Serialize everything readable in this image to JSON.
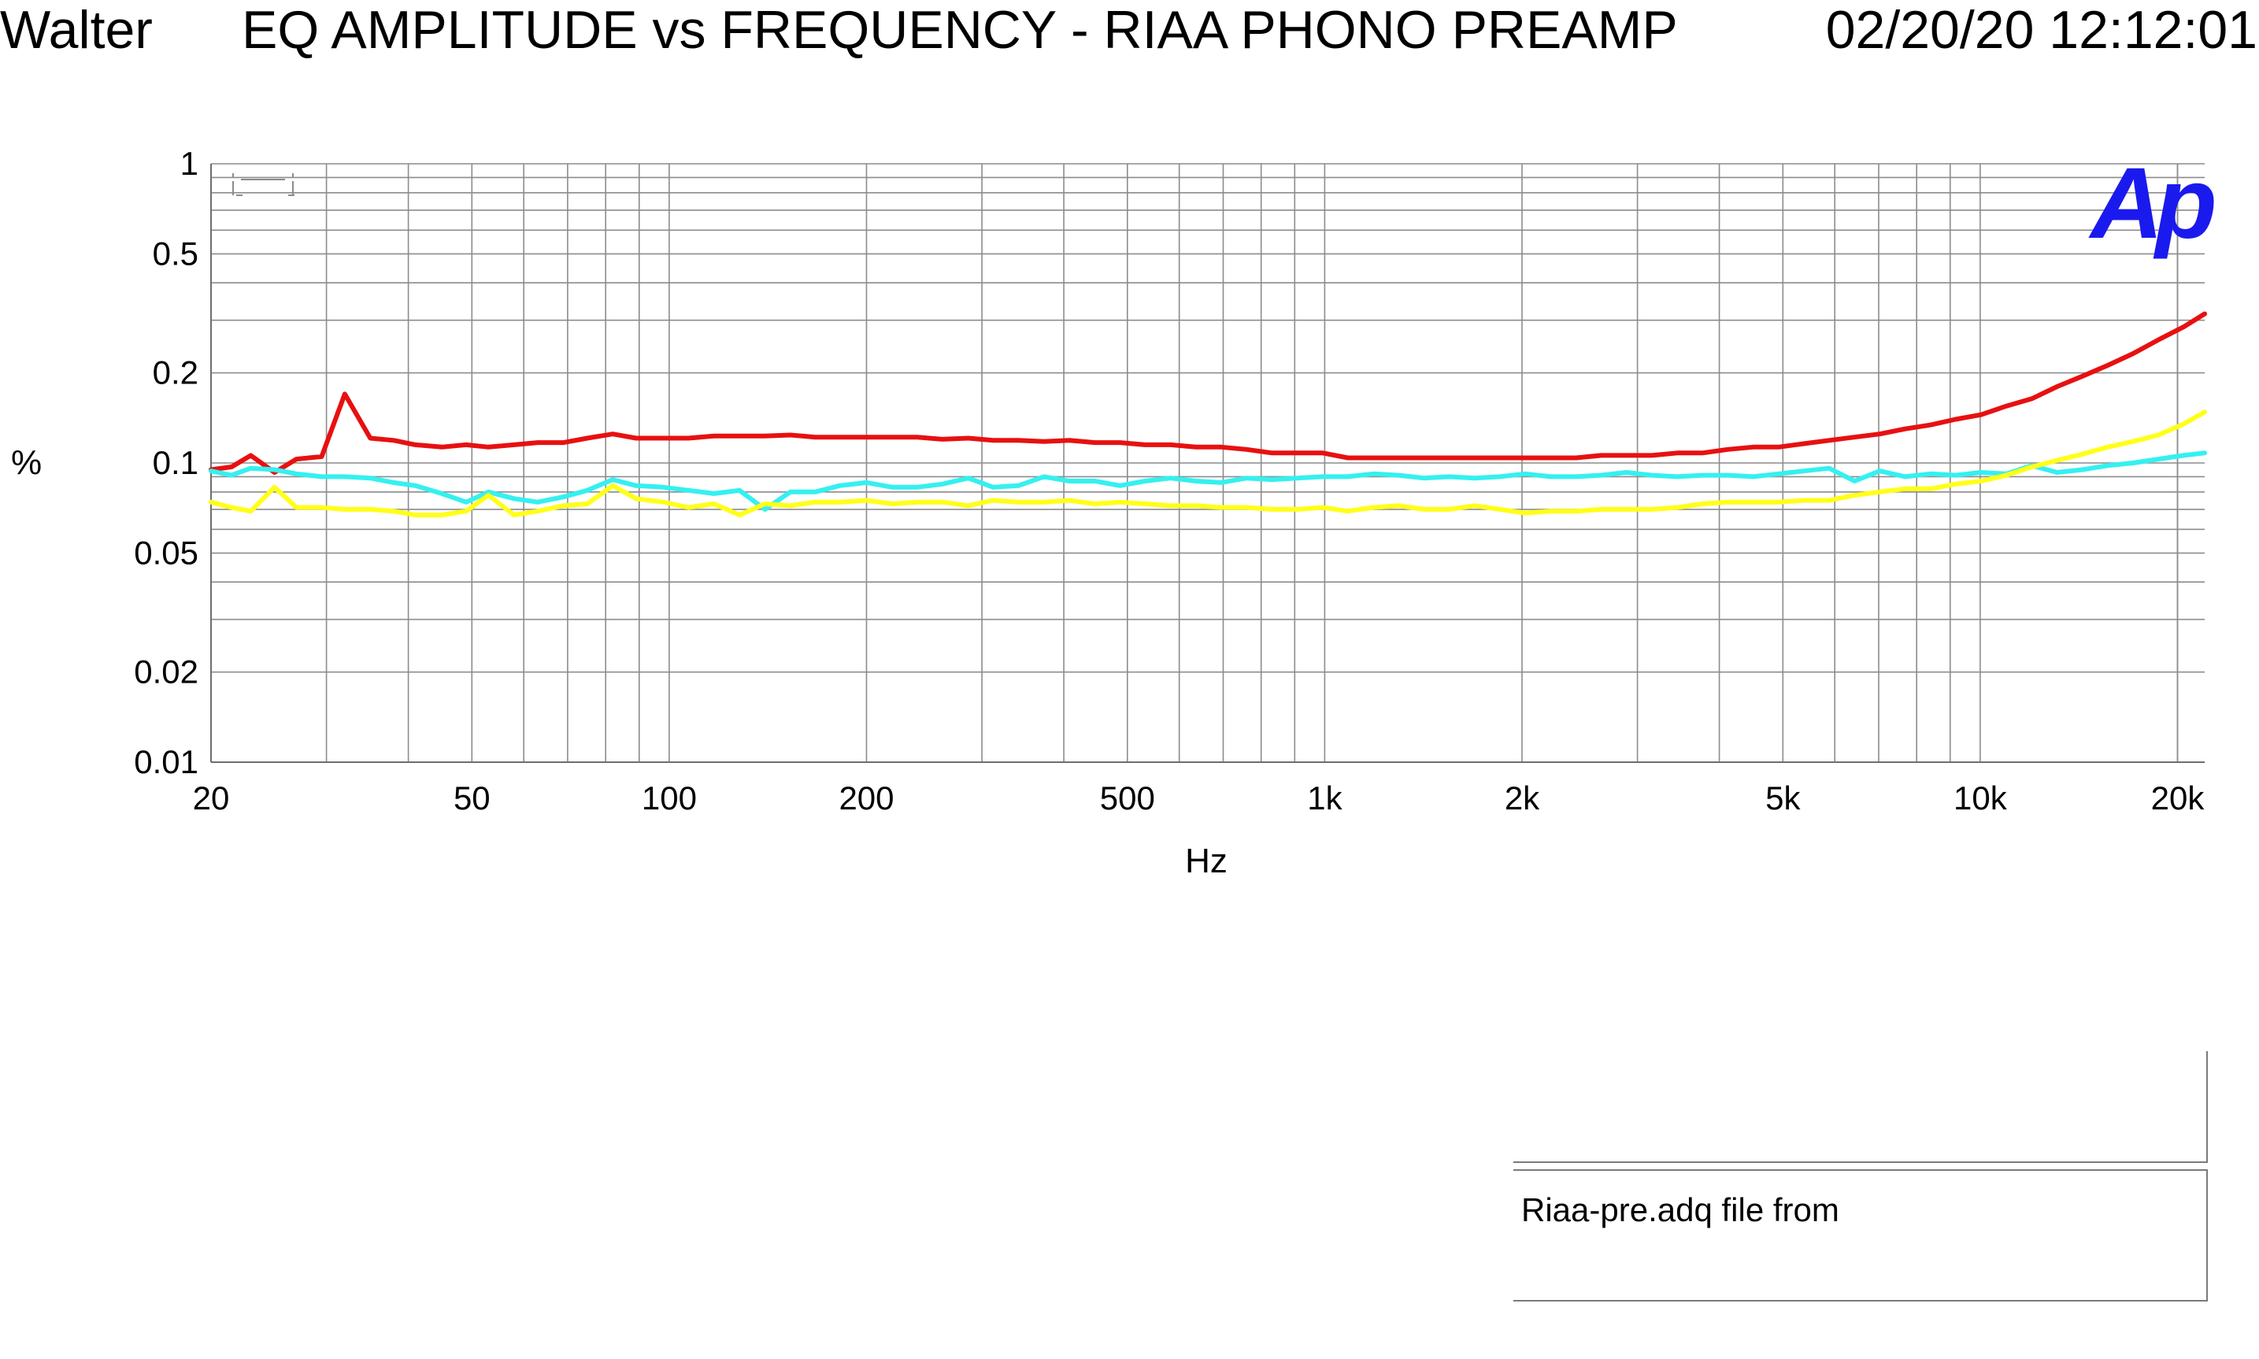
{
  "header": {
    "author": "Walter",
    "title": "EQ AMPLITUDE vs FREQUENCY - RIAA PHONO PREAMP",
    "timestamp": "02/20/20 12:12:01"
  },
  "logo_text": "Ap",
  "note": {
    "top": "",
    "text": "Riaa-pre.adq file from"
  },
  "chart_data": {
    "type": "line",
    "title": "EQ AMPLITUDE vs FREQUENCY - RIAA PHONO PREAMP",
    "xlabel": "Hz",
    "ylabel": "%",
    "x_scale": "log",
    "y_scale": "log",
    "xlim": [
      20,
      22000
    ],
    "ylim": [
      0.01,
      1
    ],
    "grid": true,
    "x_ticks": [
      {
        "v": 20,
        "label": "20"
      },
      {
        "v": 50,
        "label": "50"
      },
      {
        "v": 100,
        "label": "100"
      },
      {
        "v": 200,
        "label": "200"
      },
      {
        "v": 500,
        "label": "500"
      },
      {
        "v": 1000,
        "label": "1k"
      },
      {
        "v": 2000,
        "label": "2k"
      },
      {
        "v": 5000,
        "label": "5k"
      },
      {
        "v": 10000,
        "label": "10k"
      },
      {
        "v": 20000,
        "label": "20k"
      }
    ],
    "y_ticks": [
      {
        "v": 1,
        "label": "1"
      },
      {
        "v": 0.5,
        "label": "0.5"
      },
      {
        "v": 0.2,
        "label": "0.2"
      },
      {
        "v": 0.1,
        "label": "0.1"
      },
      {
        "v": 0.05,
        "label": "0.05"
      },
      {
        "v": 0.02,
        "label": "0.02"
      },
      {
        "v": 0.01,
        "label": "0.01"
      }
    ],
    "series": [
      {
        "color": "#e81010",
        "points": [
          [
            20,
            0.095
          ],
          [
            21.5,
            0.097
          ],
          [
            23,
            0.106
          ],
          [
            25,
            0.093
          ],
          [
            27,
            0.103
          ],
          [
            29.5,
            0.105
          ],
          [
            32,
            0.17
          ],
          [
            35,
            0.121
          ],
          [
            38,
            0.119
          ],
          [
            41,
            0.115
          ],
          [
            45,
            0.113
          ],
          [
            49,
            0.115
          ],
          [
            53,
            0.113
          ],
          [
            58,
            0.115
          ],
          [
            63,
            0.117
          ],
          [
            69,
            0.117
          ],
          [
            75,
            0.121
          ],
          [
            82,
            0.125
          ],
          [
            89,
            0.121
          ],
          [
            98,
            0.121
          ],
          [
            107,
            0.121
          ],
          [
            117,
            0.123
          ],
          [
            128,
            0.123
          ],
          [
            140,
            0.123
          ],
          [
            153,
            0.124
          ],
          [
            167,
            0.122
          ],
          [
            182,
            0.122
          ],
          [
            200,
            0.122
          ],
          [
            219,
            0.122
          ],
          [
            239,
            0.122
          ],
          [
            261,
            0.12
          ],
          [
            286,
            0.121
          ],
          [
            312,
            0.119
          ],
          [
            341,
            0.119
          ],
          [
            373,
            0.118
          ],
          [
            408,
            0.119
          ],
          [
            446,
            0.117
          ],
          [
            487,
            0.117
          ],
          [
            532,
            0.115
          ],
          [
            582,
            0.115
          ],
          [
            636,
            0.113
          ],
          [
            695,
            0.113
          ],
          [
            760,
            0.111
          ],
          [
            831,
            0.108
          ],
          [
            908,
            0.108
          ],
          [
            993,
            0.108
          ],
          [
            1085,
            0.104
          ],
          [
            1186,
            0.104
          ],
          [
            1296,
            0.104
          ],
          [
            1417,
            0.104
          ],
          [
            1549,
            0.104
          ],
          [
            1693,
            0.104
          ],
          [
            1850,
            0.104
          ],
          [
            2022,
            0.104
          ],
          [
            2211,
            0.104
          ],
          [
            2417,
            0.104
          ],
          [
            2641,
            0.106
          ],
          [
            2887,
            0.106
          ],
          [
            3156,
            0.106
          ],
          [
            3450,
            0.108
          ],
          [
            3770,
            0.108
          ],
          [
            4121,
            0.111
          ],
          [
            4505,
            0.113
          ],
          [
            4924,
            0.113
          ],
          [
            5382,
            0.116
          ],
          [
            5883,
            0.119
          ],
          [
            6430,
            0.122
          ],
          [
            7028,
            0.125
          ],
          [
            7682,
            0.13
          ],
          [
            8397,
            0.134
          ],
          [
            9178,
            0.14
          ],
          [
            10032,
            0.145
          ],
          [
            10965,
            0.155
          ],
          [
            11985,
            0.164
          ],
          [
            13100,
            0.18
          ],
          [
            14318,
            0.195
          ],
          [
            15650,
            0.212
          ],
          [
            17106,
            0.232
          ],
          [
            18697,
            0.258
          ],
          [
            20436,
            0.285
          ],
          [
            22000,
            0.315
          ]
        ]
      },
      {
        "color": "#35f0f0",
        "points": [
          [
            20,
            0.094
          ],
          [
            21.5,
            0.091
          ],
          [
            23,
            0.096
          ],
          [
            25,
            0.095
          ],
          [
            27,
            0.092
          ],
          [
            29.5,
            0.09
          ],
          [
            32,
            0.09
          ],
          [
            35,
            0.089
          ],
          [
            38,
            0.086
          ],
          [
            41,
            0.084
          ],
          [
            45,
            0.079
          ],
          [
            49,
            0.074
          ],
          [
            53,
            0.08
          ],
          [
            58,
            0.076
          ],
          [
            63,
            0.074
          ],
          [
            69,
            0.077
          ],
          [
            75,
            0.081
          ],
          [
            82,
            0.088
          ],
          [
            89,
            0.084
          ],
          [
            98,
            0.083
          ],
          [
            107,
            0.081
          ],
          [
            117,
            0.079
          ],
          [
            128,
            0.081
          ],
          [
            140,
            0.07
          ],
          [
            153,
            0.08
          ],
          [
            167,
            0.08
          ],
          [
            182,
            0.084
          ],
          [
            200,
            0.086
          ],
          [
            219,
            0.083
          ],
          [
            239,
            0.083
          ],
          [
            261,
            0.085
          ],
          [
            286,
            0.089
          ],
          [
            312,
            0.083
          ],
          [
            341,
            0.084
          ],
          [
            373,
            0.09
          ],
          [
            408,
            0.087
          ],
          [
            446,
            0.087
          ],
          [
            487,
            0.084
          ],
          [
            532,
            0.087
          ],
          [
            582,
            0.089
          ],
          [
            636,
            0.087
          ],
          [
            695,
            0.086
          ],
          [
            760,
            0.089
          ],
          [
            831,
            0.088
          ],
          [
            908,
            0.089
          ],
          [
            993,
            0.09
          ],
          [
            1085,
            0.09
          ],
          [
            1186,
            0.092
          ],
          [
            1296,
            0.091
          ],
          [
            1417,
            0.089
          ],
          [
            1549,
            0.09
          ],
          [
            1693,
            0.089
          ],
          [
            1850,
            0.09
          ],
          [
            2022,
            0.092
          ],
          [
            2211,
            0.09
          ],
          [
            2417,
            0.09
          ],
          [
            2641,
            0.091
          ],
          [
            2887,
            0.093
          ],
          [
            3156,
            0.091
          ],
          [
            3450,
            0.09
          ],
          [
            3770,
            0.091
          ],
          [
            4121,
            0.091
          ],
          [
            4505,
            0.09
          ],
          [
            4924,
            0.092
          ],
          [
            5382,
            0.094
          ],
          [
            5883,
            0.096
          ],
          [
            6430,
            0.087
          ],
          [
            7028,
            0.094
          ],
          [
            7682,
            0.09
          ],
          [
            8397,
            0.092
          ],
          [
            9178,
            0.091
          ],
          [
            10032,
            0.093
          ],
          [
            10965,
            0.092
          ],
          [
            11985,
            0.098
          ],
          [
            13100,
            0.093
          ],
          [
            14318,
            0.095
          ],
          [
            15650,
            0.098
          ],
          [
            17106,
            0.1
          ],
          [
            18697,
            0.103
          ],
          [
            20436,
            0.106
          ],
          [
            22000,
            0.108
          ]
        ]
      },
      {
        "color": "#ffff1a",
        "points": [
          [
            20,
            0.074
          ],
          [
            21.5,
            0.071
          ],
          [
            23,
            0.069
          ],
          [
            25,
            0.083
          ],
          [
            27,
            0.071
          ],
          [
            29.5,
            0.071
          ],
          [
            32,
            0.07
          ],
          [
            35,
            0.07
          ],
          [
            38,
            0.069
          ],
          [
            41,
            0.067
          ],
          [
            45,
            0.067
          ],
          [
            49,
            0.069
          ],
          [
            53,
            0.078
          ],
          [
            58,
            0.067
          ],
          [
            63,
            0.069
          ],
          [
            69,
            0.072
          ],
          [
            75,
            0.073
          ],
          [
            82,
            0.084
          ],
          [
            89,
            0.076
          ],
          [
            98,
            0.074
          ],
          [
            107,
            0.071
          ],
          [
            117,
            0.073
          ],
          [
            128,
            0.067
          ],
          [
            140,
            0.073
          ],
          [
            153,
            0.072
          ],
          [
            167,
            0.074
          ],
          [
            182,
            0.074
          ],
          [
            200,
            0.075
          ],
          [
            219,
            0.073
          ],
          [
            239,
            0.074
          ],
          [
            261,
            0.074
          ],
          [
            286,
            0.072
          ],
          [
            312,
            0.075
          ],
          [
            341,
            0.074
          ],
          [
            373,
            0.074
          ],
          [
            408,
            0.075
          ],
          [
            446,
            0.073
          ],
          [
            487,
            0.074
          ],
          [
            532,
            0.073
          ],
          [
            582,
            0.072
          ],
          [
            636,
            0.072
          ],
          [
            695,
            0.071
          ],
          [
            760,
            0.071
          ],
          [
            831,
            0.07
          ],
          [
            908,
            0.07
          ],
          [
            993,
            0.071
          ],
          [
            1085,
            0.069
          ],
          [
            1186,
            0.071
          ],
          [
            1296,
            0.072
          ],
          [
            1417,
            0.07
          ],
          [
            1549,
            0.07
          ],
          [
            1693,
            0.072
          ],
          [
            1850,
            0.07
          ],
          [
            2022,
            0.068
          ],
          [
            2211,
            0.069
          ],
          [
            2417,
            0.069
          ],
          [
            2641,
            0.07
          ],
          [
            2887,
            0.07
          ],
          [
            3156,
            0.07
          ],
          [
            3450,
            0.071
          ],
          [
            3770,
            0.073
          ],
          [
            4121,
            0.074
          ],
          [
            4505,
            0.074
          ],
          [
            4924,
            0.074
          ],
          [
            5382,
            0.075
          ],
          [
            5883,
            0.075
          ],
          [
            6430,
            0.078
          ],
          [
            7028,
            0.08
          ],
          [
            7682,
            0.082
          ],
          [
            8397,
            0.082
          ],
          [
            9178,
            0.085
          ],
          [
            10032,
            0.087
          ],
          [
            10965,
            0.091
          ],
          [
            11985,
            0.097
          ],
          [
            13100,
            0.102
          ],
          [
            14318,
            0.107
          ],
          [
            15650,
            0.113
          ],
          [
            17106,
            0.118
          ],
          [
            18697,
            0.124
          ],
          [
            20436,
            0.135
          ],
          [
            22000,
            0.148
          ]
        ]
      }
    ]
  }
}
